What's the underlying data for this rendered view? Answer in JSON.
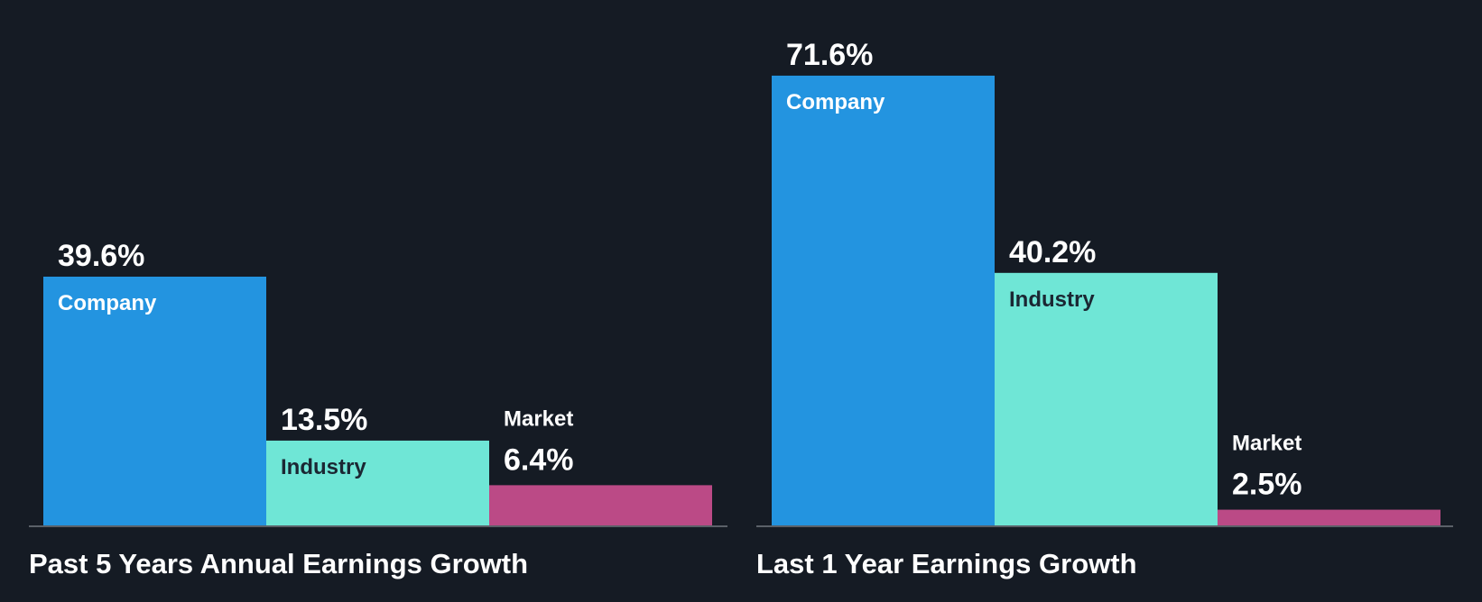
{
  "chart_data": [
    {
      "type": "bar",
      "title": "Past 5 Years Annual Earnings Growth",
      "categories": [
        "Company",
        "Industry",
        "Market"
      ],
      "values": [
        39.6,
        13.5,
        6.4
      ],
      "value_labels": [
        "39.6%",
        "13.5%",
        "6.4%"
      ],
      "unit": "%",
      "grid": false,
      "legend": "none"
    },
    {
      "type": "bar",
      "title": "Last 1 Year Earnings Growth",
      "categories": [
        "Company",
        "Industry",
        "Market"
      ],
      "values": [
        71.6,
        40.2,
        2.5
      ],
      "value_labels": [
        "71.6%",
        "40.2%",
        "2.5%"
      ],
      "unit": "%",
      "grid": false,
      "legend": "none"
    }
  ],
  "colors": {
    "background": "#151b24",
    "company": "#2394e0",
    "industry": "#6fe6d6",
    "market": "#bb4a86",
    "baseline": "#5a6068",
    "label_on_dark": "#ffffff",
    "label_on_light": "#1b2733"
  }
}
